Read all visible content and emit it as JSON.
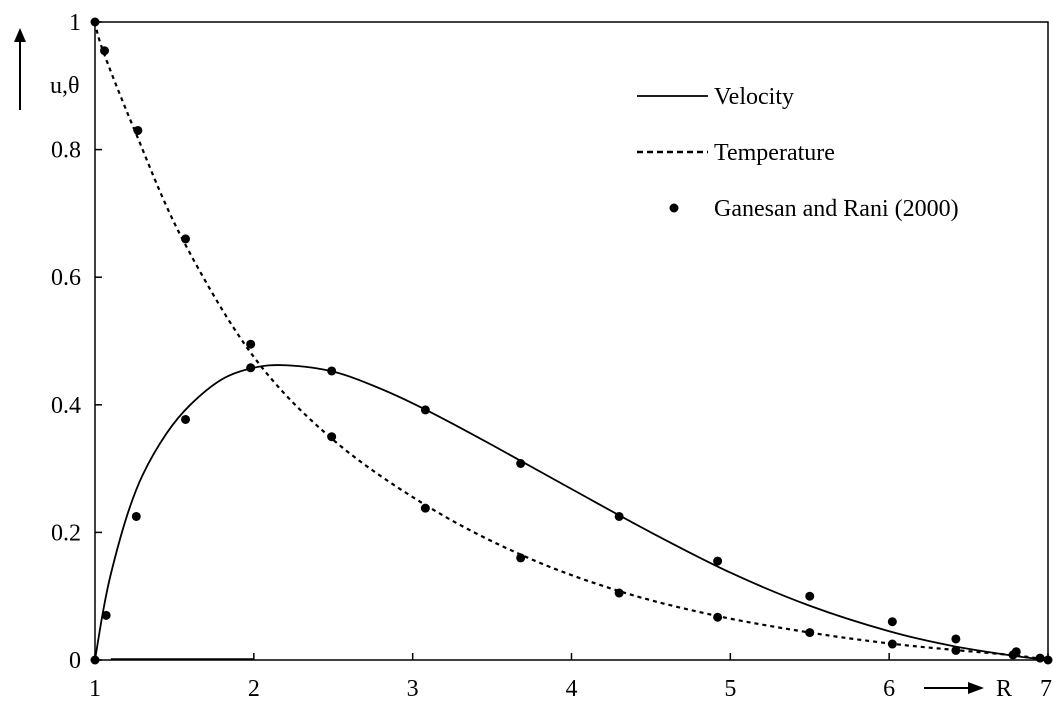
{
  "chart_data": {
    "type": "line",
    "title": "",
    "xlabel": "R",
    "ylabel": "u,θ",
    "xlim": [
      1,
      7
    ],
    "ylim": [
      0,
      1
    ],
    "x_ticks": [
      1,
      2,
      3,
      4,
      5,
      6,
      7
    ],
    "y_ticks": [
      0,
      0.2,
      0.4,
      0.6,
      0.8,
      1
    ],
    "y_tick_labels": [
      "0",
      "0.2",
      "0.4",
      "0.6",
      "0.8",
      "1"
    ],
    "x_tick_labels": [
      "1",
      "2",
      "3",
      "4",
      "5",
      "6",
      "7"
    ],
    "legend_position": "top-right",
    "grid": false,
    "series": [
      {
        "name": "Velocity",
        "style": "solid",
        "x": [
          1,
          1.05,
          1.1,
          1.2,
          1.3,
          1.45,
          1.6,
          1.8,
          2.0,
          2.2,
          2.5,
          2.8,
          3.1,
          3.5,
          4.0,
          4.5,
          5.0,
          5.5,
          6.0,
          6.4,
          6.8,
          7.0
        ],
        "y": [
          0,
          0.075,
          0.135,
          0.225,
          0.29,
          0.355,
          0.4,
          0.44,
          0.458,
          0.462,
          0.452,
          0.425,
          0.39,
          0.337,
          0.268,
          0.2,
          0.137,
          0.085,
          0.045,
          0.022,
          0.006,
          0
        ]
      },
      {
        "name": "Temperature",
        "style": "dashed",
        "x": [
          1,
          1.05,
          1.25,
          1.55,
          2.0,
          2.5,
          3.1,
          3.7,
          4.3,
          4.9,
          5.5,
          6.0,
          6.4,
          6.8,
          7.0
        ],
        "y": [
          1,
          0.955,
          0.83,
          0.66,
          0.475,
          0.345,
          0.24,
          0.163,
          0.108,
          0.07,
          0.043,
          0.026,
          0.016,
          0.007,
          0
        ]
      },
      {
        "name": "Ganesan and Rani (2000)",
        "style": "markers",
        "points": [
          [
            1.0,
            1.0
          ],
          [
            1.06,
            0.955
          ],
          [
            1.27,
            0.83
          ],
          [
            1.57,
            0.66
          ],
          [
            1.98,
            0.495
          ],
          [
            2.49,
            0.35
          ],
          [
            3.08,
            0.238
          ],
          [
            3.68,
            0.16
          ],
          [
            4.3,
            0.105
          ],
          [
            4.92,
            0.067
          ],
          [
            5.5,
            0.043
          ],
          [
            6.02,
            0.025
          ],
          [
            6.42,
            0.015
          ],
          [
            6.78,
            0.008
          ],
          [
            1.0,
            0.0
          ],
          [
            1.07,
            0.07
          ],
          [
            1.26,
            0.225
          ],
          [
            1.57,
            0.377
          ],
          [
            1.98,
            0.458
          ],
          [
            2.49,
            0.453
          ],
          [
            3.08,
            0.392
          ],
          [
            3.68,
            0.308
          ],
          [
            4.3,
            0.225
          ],
          [
            4.92,
            0.155
          ],
          [
            5.5,
            0.1
          ],
          [
            6.02,
            0.06
          ],
          [
            6.42,
            0.033
          ],
          [
            6.8,
            0.013
          ],
          [
            6.95,
            0.003
          ],
          [
            7.0,
            0.0
          ]
        ]
      }
    ]
  }
}
